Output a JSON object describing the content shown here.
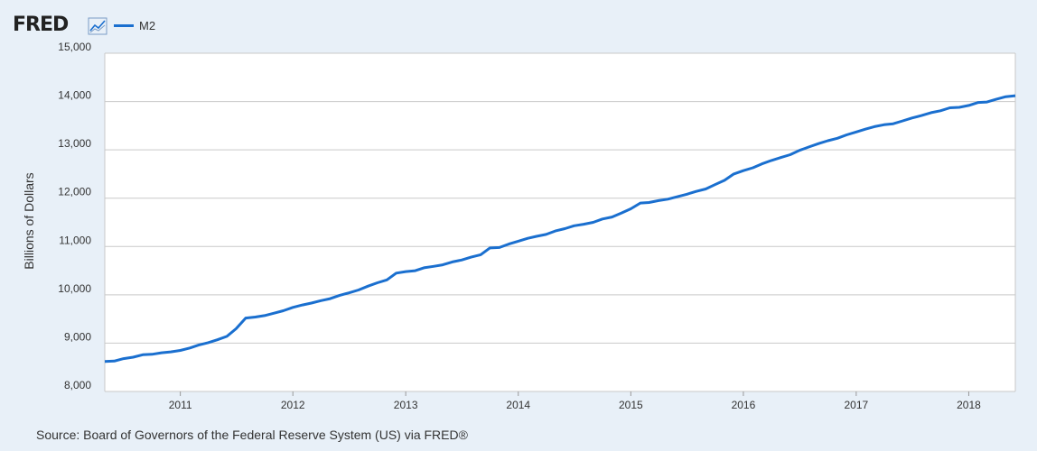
{
  "header": {
    "logo_text": "FRED",
    "brand_icon": "chart-line-icon"
  },
  "chart_data": {
    "type": "line",
    "title": "",
    "xlabel": "",
    "ylabel": "Billions of Dollars",
    "ylim": [
      8000,
      15000
    ],
    "xlim": [
      "2010-05-01",
      "2018-06-01"
    ],
    "yticks": [
      8000,
      9000,
      10000,
      11000,
      12000,
      13000,
      14000,
      15000
    ],
    "ytick_labels": [
      "8,000",
      "9,000",
      "10,000",
      "11,000",
      "12,000",
      "13,000",
      "14,000",
      "15,000"
    ],
    "xticks": [
      "2011-01-01",
      "2012-01-01",
      "2013-01-01",
      "2014-01-01",
      "2015-01-01",
      "2016-01-01",
      "2017-01-01",
      "2018-01-01"
    ],
    "xtick_labels": [
      "2011",
      "2012",
      "2013",
      "2014",
      "2015",
      "2016",
      "2017",
      "2018"
    ],
    "grid": "horizontal",
    "legend": "top-left",
    "series": [
      {
        "name": "M2",
        "color": "#1a6fcf",
        "x": [
          "2010-05-01",
          "2010-06-01",
          "2010-07-01",
          "2010-08-01",
          "2010-09-01",
          "2010-10-01",
          "2010-11-01",
          "2010-12-01",
          "2011-01-01",
          "2011-02-01",
          "2011-03-01",
          "2011-04-01",
          "2011-05-01",
          "2011-06-01",
          "2011-07-01",
          "2011-08-01",
          "2011-09-01",
          "2011-10-01",
          "2011-11-01",
          "2011-12-01",
          "2012-01-01",
          "2012-02-01",
          "2012-03-01",
          "2012-04-01",
          "2012-05-01",
          "2012-06-01",
          "2012-07-01",
          "2012-08-01",
          "2012-09-01",
          "2012-10-01",
          "2012-11-01",
          "2012-12-01",
          "2013-01-01",
          "2013-02-01",
          "2013-03-01",
          "2013-04-01",
          "2013-05-01",
          "2013-06-01",
          "2013-07-01",
          "2013-08-01",
          "2013-09-01",
          "2013-10-01",
          "2013-11-01",
          "2013-12-01",
          "2014-01-01",
          "2014-02-01",
          "2014-03-01",
          "2014-04-01",
          "2014-05-01",
          "2014-06-01",
          "2014-07-01",
          "2014-08-01",
          "2014-09-01",
          "2014-10-01",
          "2014-11-01",
          "2014-12-01",
          "2015-01-01",
          "2015-02-01",
          "2015-03-01",
          "2015-04-01",
          "2015-05-01",
          "2015-06-01",
          "2015-07-01",
          "2015-08-01",
          "2015-09-01",
          "2015-10-01",
          "2015-11-01",
          "2015-12-01",
          "2016-01-01",
          "2016-02-01",
          "2016-03-01",
          "2016-04-01",
          "2016-05-01",
          "2016-06-01",
          "2016-07-01",
          "2016-08-01",
          "2016-09-01",
          "2016-10-01",
          "2016-11-01",
          "2016-12-01",
          "2017-01-01",
          "2017-02-01",
          "2017-03-01",
          "2017-04-01",
          "2017-05-01",
          "2017-06-01",
          "2017-07-01",
          "2017-08-01",
          "2017-09-01",
          "2017-10-01",
          "2017-11-01",
          "2017-12-01",
          "2018-01-01",
          "2018-02-01",
          "2018-03-01",
          "2018-04-01",
          "2018-05-01",
          "2018-06-01"
        ],
        "values": [
          8620,
          8630,
          8680,
          8710,
          8760,
          8770,
          8800,
          8820,
          8850,
          8900,
          8960,
          9010,
          9070,
          9140,
          9300,
          9520,
          9540,
          9570,
          9620,
          9670,
          9740,
          9790,
          9830,
          9880,
          9920,
          9990,
          10040,
          10100,
          10180,
          10250,
          10310,
          10450,
          10480,
          10500,
          10560,
          10590,
          10620,
          10680,
          10720,
          10780,
          10830,
          10970,
          10980,
          11050,
          11110,
          11170,
          11210,
          11250,
          11320,
          11370,
          11430,
          11460,
          11500,
          11570,
          11610,
          11690,
          11780,
          11900,
          11910,
          11950,
          11980,
          12030,
          12080,
          12140,
          12190,
          12280,
          12370,
          12500,
          12570,
          12630,
          12710,
          12780,
          12840,
          12900,
          12990,
          13060,
          13130,
          13190,
          13240,
          13310,
          13370,
          13430,
          13480,
          13520,
          13540,
          13600,
          13660,
          13710,
          13770,
          13810,
          13870,
          13880,
          13920,
          13980,
          13990,
          14050,
          14100,
          14120
        ]
      }
    ]
  },
  "footer": {
    "source": "Source: Board of Governors of the Federal Reserve System (US) via FRED®"
  }
}
